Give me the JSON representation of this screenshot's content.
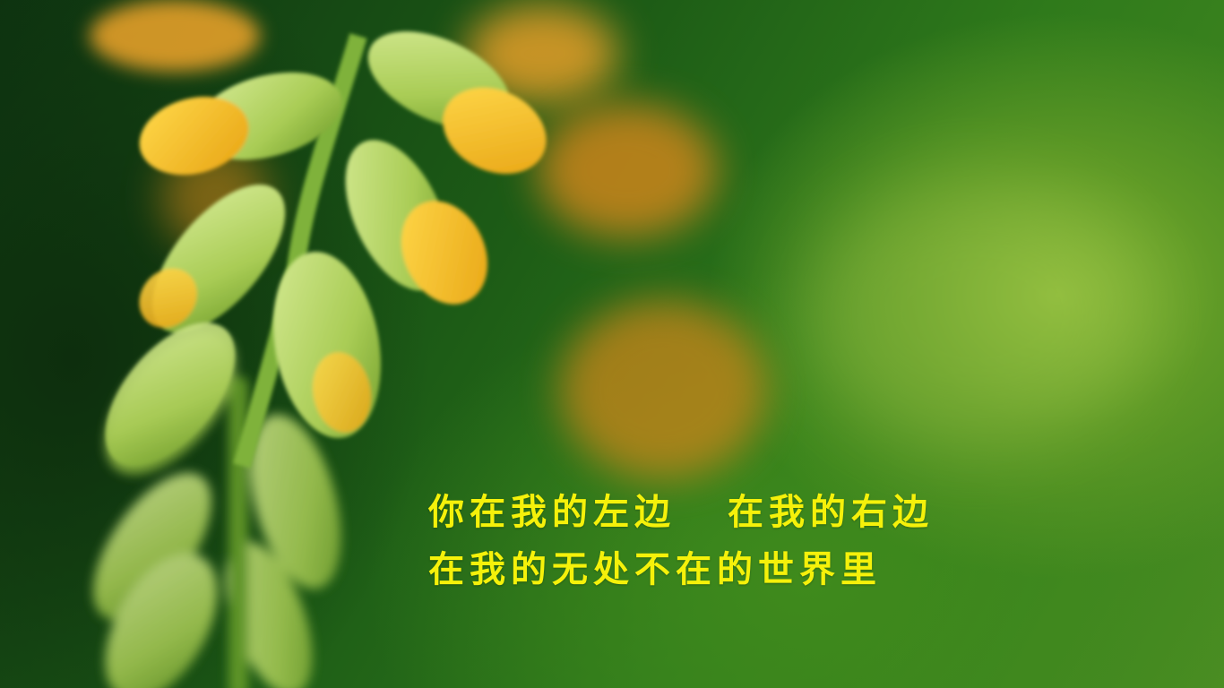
{
  "caption": {
    "line1_part1": "你在我的左边",
    "line1_part2": "在我的右边",
    "line2": "在我的无处不在的世界里"
  },
  "colors": {
    "text": "#f5f10a",
    "bud_yellow": "#f2c12a",
    "bud_green": "#b9d86a",
    "background_green": "#1d5c16"
  }
}
